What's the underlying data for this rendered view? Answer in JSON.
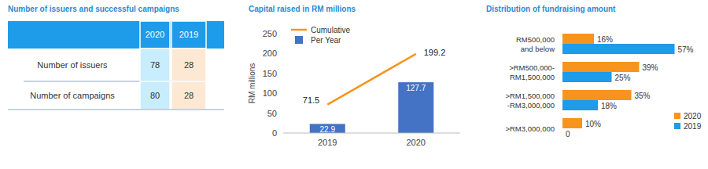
{
  "table": {
    "title": "Number of issuers and successful campaigns",
    "columns": [
      "2020",
      "2019"
    ],
    "rows": [
      {
        "label": "Number of issuers",
        "values": [
          78,
          28
        ]
      },
      {
        "label": "Number of campaigns",
        "values": [
          80,
          28
        ]
      }
    ]
  },
  "chart_data": [
    {
      "type": "bar",
      "title": "Capital raised in RM millions",
      "ylabel": "RM millions",
      "categories": [
        "2019",
        "2020"
      ],
      "series": [
        {
          "name": "Cumulative",
          "type": "line",
          "color": "#f7941d",
          "values": [
            71.5,
            199.2
          ]
        },
        {
          "name": "Per Year",
          "type": "bar",
          "color": "#4472c4",
          "values": [
            22.9,
            127.7
          ]
        }
      ],
      "ylim": [
        0,
        250
      ],
      "yticks": [
        0,
        50,
        100,
        150,
        200,
        250
      ],
      "data_labels": true,
      "legend": "upper left"
    },
    {
      "type": "bar",
      "orientation": "horizontal",
      "title": "Distribution of fundraising amount",
      "categories": [
        "RM500,000\nand below",
        ">RM500,000-\nRM1,500,000",
        ">RM1,500,000\n-RM3,000,000",
        ">RM3,000,000"
      ],
      "series": [
        {
          "name": "2020",
          "color": "#f7941d",
          "values": [
            16,
            39,
            35,
            10
          ],
          "value_labels": [
            "16%",
            "39%",
            "35%",
            "10%"
          ]
        },
        {
          "name": "2019",
          "color": "#1e9be9",
          "values": [
            57,
            25,
            18,
            0
          ],
          "value_labels": [
            "57%",
            "25%",
            "18%",
            "0"
          ]
        }
      ],
      "xlim": [
        0,
        60
      ],
      "data_labels": true,
      "tick_labels": false,
      "legend": "lower right"
    }
  ]
}
